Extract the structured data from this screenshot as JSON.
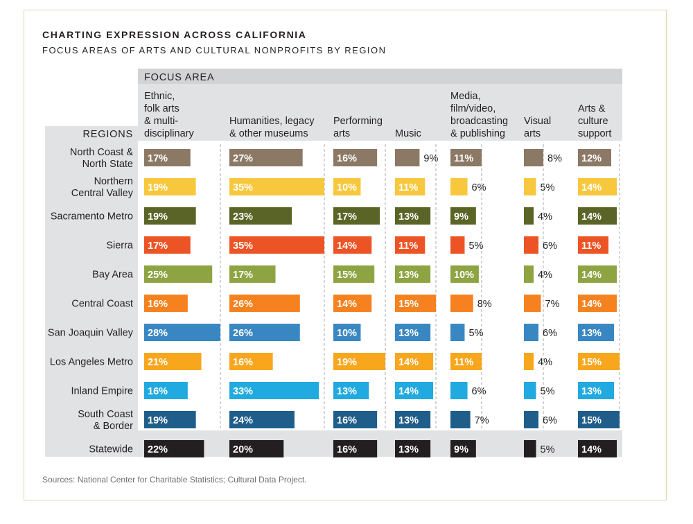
{
  "title": "CHARTING EXPRESSION ACROSS CALIFORNIA",
  "subtitle": "FOCUS AREAS OF ARTS AND CULTURAL NONPROFITS BY REGION",
  "source": "Sources: National Center for Charitable Statistics; Cultural Data Project.",
  "chart_data": {
    "type": "bar",
    "title": "CHARTING EXPRESSION ACROSS CALIFORNIA",
    "subtitle": "FOCUS AREAS OF ARTS AND CULTURAL NONPROFITS BY REGION",
    "header_label": "FOCUS AREA",
    "row_header": "REGIONS",
    "unit": "%",
    "categories": [
      {
        "lines": [
          "Ethnic,",
          "folk arts",
          "& multi-",
          "disciplinary"
        ],
        "max": 28
      },
      {
        "lines": [
          "Humanities, legacy",
          "& other museums"
        ],
        "max": 35
      },
      {
        "lines": [
          "Performing",
          "arts"
        ],
        "max": 19
      },
      {
        "lines": [
          "Music"
        ],
        "max": 15
      },
      {
        "lines": [
          "Media,",
          "film/video,",
          "broadcasting",
          "& publishing"
        ],
        "max": 11
      },
      {
        "lines": [
          "Visual",
          "arts"
        ],
        "max": 8
      },
      {
        "lines": [
          "Arts &",
          "culture",
          "support"
        ],
        "max": 15
      }
    ],
    "regions": [
      {
        "lines": [
          "North Coast &",
          "North State"
        ],
        "color": "#8b7965",
        "values": [
          17,
          27,
          16,
          9,
          11,
          8,
          12
        ]
      },
      {
        "lines": [
          "Northern",
          "Central Valley"
        ],
        "color": "#f7c83d",
        "values": [
          19,
          35,
          10,
          11,
          6,
          5,
          14
        ]
      },
      {
        "lines": [
          "Sacramento Metro"
        ],
        "color": "#5a6426",
        "values": [
          19,
          23,
          17,
          13,
          9,
          4,
          14
        ]
      },
      {
        "lines": [
          "Sierra"
        ],
        "color": "#ec5425",
        "values": [
          17,
          35,
          14,
          11,
          5,
          6,
          11
        ]
      },
      {
        "lines": [
          "Bay Area"
        ],
        "color": "#8ea443",
        "values": [
          25,
          17,
          15,
          13,
          10,
          4,
          14
        ]
      },
      {
        "lines": [
          "Central Coast"
        ],
        "color": "#f5821f",
        "values": [
          16,
          26,
          14,
          15,
          8,
          7,
          14
        ]
      },
      {
        "lines": [
          "San Joaquin Valley"
        ],
        "color": "#3987c2",
        "values": [
          28,
          26,
          10,
          13,
          5,
          6,
          13
        ]
      },
      {
        "lines": [
          "Los Angeles Metro"
        ],
        "color": "#f8a61c",
        "values": [
          21,
          16,
          19,
          14,
          11,
          4,
          15
        ]
      },
      {
        "lines": [
          "Inland Empire"
        ],
        "color": "#21aadf",
        "values": [
          16,
          33,
          13,
          14,
          6,
          5,
          13
        ]
      },
      {
        "lines": [
          "South Coast",
          "& Border"
        ],
        "color": "#1f5d8a",
        "values": [
          19,
          24,
          16,
          13,
          7,
          6,
          15
        ]
      },
      {
        "lines": [
          "Statewide"
        ],
        "color": "#231f20",
        "values": [
          22,
          20,
          16,
          13,
          9,
          5,
          14
        ],
        "total": true
      }
    ]
  }
}
